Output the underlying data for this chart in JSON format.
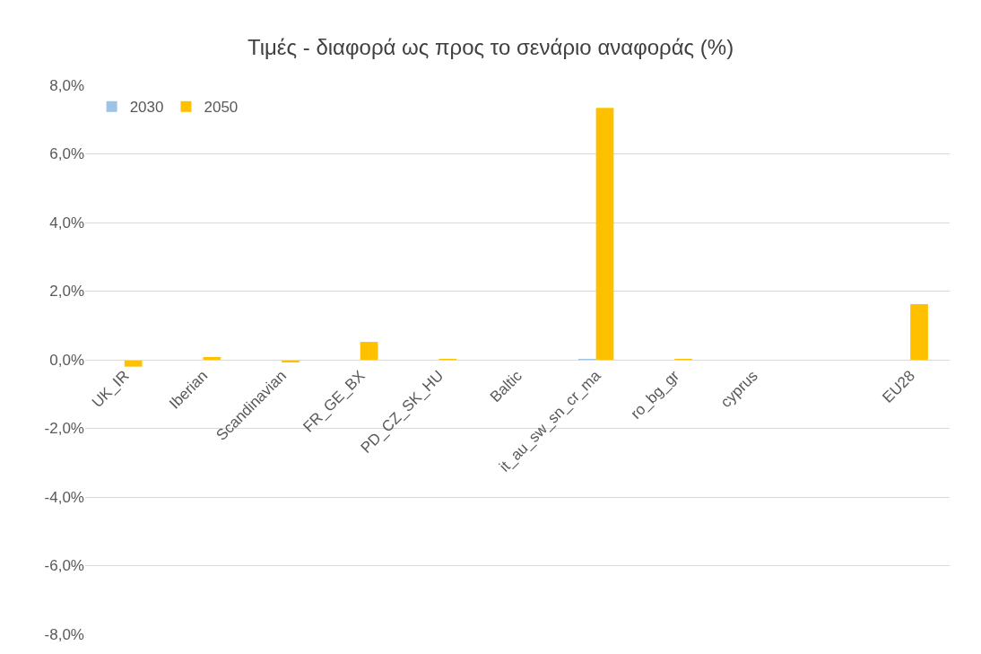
{
  "chart_data": {
    "type": "bar",
    "title": "Τιμές - διαφορά ως προς το σενάριο αναφοράς (%)",
    "categories": [
      "UK_IR",
      "Iberian",
      "Scandinavian",
      "FR_GE_BX",
      "PD_CZ_SK_HU",
      "Baltic",
      "it_au_sw_sn_cr_ma",
      "ro_bg_gr",
      "cyprus",
      null,
      "EU28"
    ],
    "series": [
      {
        "name": "2030",
        "color": "#9dc3e6",
        "values": [
          null,
          0.0,
          0.0,
          0.0,
          0.0,
          0.0,
          0.02,
          0.0,
          0.0,
          null,
          null
        ]
      },
      {
        "name": "2050",
        "color": "#ffc000",
        "values": [
          -0.2,
          0.08,
          -0.08,
          0.52,
          0.01,
          0.0,
          7.34,
          0.01,
          0.0,
          null,
          1.62
        ]
      }
    ],
    "ylim": [
      -8,
      8
    ],
    "yticks": [
      {
        "value": -8,
        "label": "-8,0%"
      },
      {
        "value": -6,
        "label": "-6,0%"
      },
      {
        "value": -4,
        "label": "-4,0%"
      },
      {
        "value": -2,
        "label": "-2,0%"
      },
      {
        "value": 0,
        "label": "0,0%"
      },
      {
        "value": 2,
        "label": "2,0%"
      },
      {
        "value": 4,
        "label": "4,0%"
      },
      {
        "value": 6,
        "label": "6,0%"
      },
      {
        "value": 8,
        "label": "8,0%"
      }
    ],
    "grid": "y",
    "legend": "top left"
  }
}
